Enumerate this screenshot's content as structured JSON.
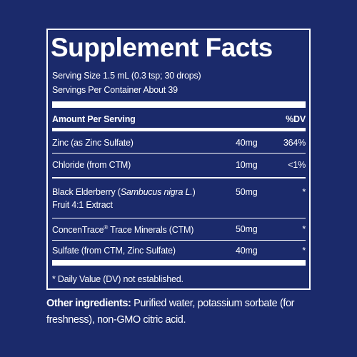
{
  "title": "Supplement Facts",
  "serving_size": "Serving Size 1.5 mL (0.3 tsp; 30 drops)",
  "servings_per_container": "Servings Per Container About 39",
  "table": {
    "header": [
      "Amount Per Serving",
      "%DV"
    ],
    "rows": [
      {
        "name": [
          "Zinc (as Zinc Sulfate)"
        ],
        "amount": "40mg",
        "dv": "364%"
      },
      {
        "name": [
          "Chloride (from CTM)"
        ],
        "amount": "10mg",
        "dv": "<1%"
      },
      {
        "name": [
          "Black Elderberry (",
          "Sambucus nigra L.",
          ")",
          "Fruit 4:1 Extract"
        ],
        "amount": "50mg",
        "dv": "*"
      },
      {
        "name": [
          "ConcenTrace",
          "®",
          " Trace Minerals (CTM)"
        ],
        "amount": "50mg",
        "dv": "*"
      },
      {
        "name": [
          "Sulfate (from CTM, Zinc Sulfate)"
        ],
        "amount": "40mg",
        "dv": "*"
      }
    ]
  },
  "footnote": "* Daily Value (DV) not established.",
  "other_ingredients": {
    "label": "Other ingredients:",
    "text": "Purified water, potassium sorbate (for freshness), non-GMO citric acid."
  }
}
